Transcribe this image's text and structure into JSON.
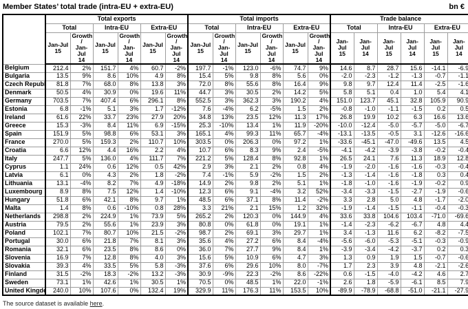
{
  "title": "Member States’ total trade (intra-EU + extra-EU)",
  "unit": "bn €",
  "table": {
    "groups": [
      {
        "label": "Total exports",
        "subgroups": [
          {
            "label": "Total",
            "cols": [
              "Jan-Jul\n15",
              "Growth /\nJan-Jul\n14"
            ]
          },
          {
            "label": "Intra-EU",
            "cols": [
              "Jan-Jul\n15",
              "Growth /\nJan-Jul\n14"
            ]
          },
          {
            "label": "Extra-EU",
            "cols": [
              "Jan-Jul\n15",
              "Growth /\nJan-Jul\n14"
            ]
          }
        ]
      },
      {
        "label": "Total imports",
        "subgroups": [
          {
            "label": "Total",
            "cols": [
              "Jan-Jul\n15",
              "Growth /\nJan-Jul\n14"
            ]
          },
          {
            "label": "Intra-EU",
            "cols": [
              "Jan-Jul\n15",
              "Growth /\nJan-Jul\n14"
            ]
          },
          {
            "label": "Extra-EU",
            "cols": [
              "Jan-Jul\n15",
              "Growth /\nJan-Jul\n14"
            ]
          }
        ]
      },
      {
        "label": "Trade balance",
        "subgroups": [
          {
            "label": "Total",
            "cols": [
              "Jan-Jul\n15",
              "Jan-Jul\n14"
            ]
          },
          {
            "label": "Intra-EU",
            "cols": [
              "Jan-Jul\n15",
              "Jan-Jul\n14"
            ]
          },
          {
            "label": "Extra-EU",
            "cols": [
              "Jan-Jul\n15",
              "Jan-Jul\n14"
            ]
          }
        ]
      }
    ],
    "rows": [
      [
        "Belgium",
        "212.4",
        "2%",
        "151.7",
        "4%",
        "60.7",
        "-2%",
        "197.7",
        "-1%",
        "123.0",
        "-6%",
        "74.7",
        "9%",
        "14.6",
        "8.7",
        "28.7",
        "15.6",
        "-14.1",
        "-6.9"
      ],
      [
        "Bulgaria",
        "13.5",
        "9%",
        "8.6",
        "10%",
        "4.9",
        "8%",
        "15.4",
        "5%",
        "9.8",
        "8%",
        "5.6",
        "0%",
        "-2.0",
        "-2.3",
        "-1.2",
        "-1.3",
        "-0.7",
        "-1.1"
      ],
      [
        "Czech Republic",
        "81.8",
        "7%",
        "68.0",
        "8%",
        "13.8",
        "3%",
        "72.0",
        "8%",
        "55.6",
        "8%",
        "16.4",
        "9%",
        "9.8",
        "9.7",
        "12.4",
        "11.4",
        "-2.5",
        "-1.6"
      ],
      [
        "Denmark",
        "50.5",
        "4%",
        "30.9",
        "0%",
        "19.6",
        "11%",
        "44.7",
        "3%",
        "30.5",
        "2%",
        "14.2",
        "5%",
        "5.8",
        "5.1",
        "0.4",
        "1.0",
        "5.4",
        "4.1"
      ],
      [
        "Germany",
        "703.5",
        "7%",
        "407.4",
        "6%",
        "296.1",
        "8%",
        "552.5",
        "3%",
        "362.3",
        "3%",
        "190.2",
        "4%",
        "151.0",
        "123.7",
        "45.1",
        "32.8",
        "105.9",
        "90.9"
      ],
      [
        "Estonia",
        "6.8",
        "-1%",
        "5.1",
        "3%",
        "1.7",
        "-12%",
        "7.6",
        "-4%",
        "6.2",
        "-5%",
        "1.5",
        "2%",
        "-0.8",
        "-1.0",
        "-1.1",
        "-1.5",
        "0.2",
        "0.5"
      ],
      [
        "Ireland",
        "61.6",
        "22%",
        "33.7",
        "23%",
        "27.9",
        "20%",
        "34.8",
        "13%",
        "23.5",
        "12%",
        "11.3",
        "17%",
        "26.8",
        "19.9",
        "10.2",
        "6.3",
        "16.6",
        "13.6"
      ],
      [
        "Greece",
        "15.3",
        "-3%",
        "8.4",
        "11%",
        "6.9",
        "-15%",
        "25.3",
        "-10%",
        "13.4",
        "1%",
        "11.9",
        "-20%",
        "-10.0",
        "-12.4",
        "-5.0",
        "-5.7",
        "-5.0",
        "-6.7"
      ],
      [
        "Spain",
        "151.9",
        "5%",
        "98.8",
        "6%",
        "53.1",
        "3%",
        "165.1",
        "4%",
        "99.3",
        "11%",
        "65.7",
        "-4%",
        "-13.1",
        "-13.5",
        "-0.5",
        "3.1",
        "-12.6",
        "-16.6"
      ],
      [
        "France",
        "270.0",
        "5%",
        "159.3",
        "2%",
        "110.7",
        "10%",
        "303.5",
        "0%",
        "206.3",
        "0%",
        "97.2",
        "1%",
        "-33.6",
        "-45.1",
        "-47.0",
        "-49.6",
        "13.5",
        "4.5"
      ],
      [
        "Croatia",
        "6.6",
        "12%",
        "4.4",
        "16%",
        "2.2",
        "4%",
        "10.7",
        "6%",
        "8.3",
        "9%",
        "2.4",
        "-5%",
        "-4.1",
        "-4.2",
        "-3.9",
        "-3.8",
        "-0.2",
        "-0.4"
      ],
      [
        "Italy",
        "247.7",
        "5%",
        "136.0",
        "4%",
        "111.7",
        "7%",
        "221.2",
        "5%",
        "128.4",
        "8%",
        "92.8",
        "1%",
        "26.5",
        "24.1",
        "7.6",
        "11.3",
        "18.9",
        "12.8"
      ],
      [
        "Cyprus",
        "1.1",
        "24%",
        "0.6",
        "12%",
        "0.5",
        "42%",
        "2.9",
        "3%",
        "2.1",
        "2%",
        "0.8",
        "4%",
        "-1.9",
        "-2.0",
        "-1.6",
        "-1.6",
        "-0.3",
        "-0.4"
      ],
      [
        "Latvia",
        "6.1",
        "0%",
        "4.3",
        "2%",
        "1.8",
        "-2%",
        "7.4",
        "-1%",
        "5.9",
        "-2%",
        "1.5",
        "2%",
        "-1.3",
        "-1.4",
        "-1.6",
        "-1.8",
        "0.3",
        "0.4"
      ],
      [
        "Lithuania",
        "13.1",
        "-4%",
        "8.2",
        "7%",
        "4.9",
        "-18%",
        "14.9",
        "2%",
        "9.8",
        "2%",
        "5.1",
        "1%",
        "-1.8",
        "-1.0",
        "-1.6",
        "-1.9",
        "-0.2",
        "0.9"
      ],
      [
        "Luxembourg",
        "8.9",
        "8%",
        "7.5",
        "12%",
        "1.4",
        "-10%",
        "12.3",
        "6%",
        "9.1",
        "-4%",
        "3.2",
        "52%",
        "-3.4",
        "-3.3",
        "-1.5",
        "-2.7",
        "-1.9",
        "-0.6"
      ],
      [
        "Hungary",
        "51.8",
        "6%",
        "42.1",
        "8%",
        "9.7",
        "1%",
        "48.5",
        "6%",
        "37.1",
        "8%",
        "11.4",
        "-2%",
        "3.3",
        "2.8",
        "5.0",
        "4.8",
        "-1.7",
        "-2.0"
      ],
      [
        "Malta",
        "1.4",
        "8%",
        "0.6",
        "-10%",
        "0.8",
        "28%",
        "3.3",
        "21%",
        "2.1",
        "15%",
        "1.2",
        "32%",
        "-1.9",
        "-1.4",
        "-1.5",
        "-1.1",
        "-0.4",
        "-0.3"
      ],
      [
        "Netherlands",
        "298.8",
        "2%",
        "224.9",
        "1%",
        "73.9",
        "5%",
        "265.2",
        "2%",
        "120.3",
        "0%",
        "144.9",
        "4%",
        "33.6",
        "33.8",
        "104.6",
        "103.4",
        "-71.0",
        "-69.6"
      ],
      [
        "Austria",
        "79.5",
        "2%",
        "55.6",
        "1%",
        "23.9",
        "3%",
        "80.8",
        "0%",
        "61.8",
        "0%",
        "19.1",
        "1%",
        "-1.4",
        "-2.3",
        "-6.2",
        "-6.7",
        "4.8",
        "4.4"
      ],
      [
        "Poland",
        "102.1",
        "7%",
        "80.7",
        "10%",
        "21.5",
        "-2%",
        "98.7",
        "2%",
        "69.1",
        "3%",
        "29.7",
        "1%",
        "3.4",
        "-1.3",
        "11.6",
        "6.2",
        "-8.2",
        "-7.5"
      ],
      [
        "Portugal",
        "30.0",
        "6%",
        "21.8",
        "7%",
        "8.1",
        "3%",
        "35.6",
        "4%",
        "27.2",
        "6%",
        "8.4",
        "-4%",
        "-5.6",
        "-6.0",
        "-5.3",
        "-5.1",
        "-0.3",
        "-0.9"
      ],
      [
        "Romania",
        "32.1",
        "6%",
        "23.5",
        "8%",
        "8.6",
        "0%",
        "36.0",
        "7%",
        "27.7",
        "9%",
        "8.4",
        "1%",
        "-3.9",
        "-3.4",
        "-4.2",
        "-3.7",
        "0.2",
        "0.3"
      ],
      [
        "Slovenia",
        "16.9",
        "7%",
        "12.8",
        "8%",
        "4.0",
        "3%",
        "15.6",
        "5%",
        "10.9",
        "6%",
        "4.7",
        "3%",
        "1.3",
        "0.9",
        "1.9",
        "1.5",
        "-0.7",
        "-0.6"
      ],
      [
        "Slovakia",
        "39.3",
        "4%",
        "33.5",
        "5%",
        "5.8",
        "-3%",
        "37.6",
        "6%",
        "29.6",
        "10%",
        "8.0",
        "-7%",
        "1.7",
        "2.3",
        "3.9",
        "4.8",
        "-2.1",
        "-2.6"
      ],
      [
        "Finland",
        "31.5",
        "-2%",
        "18.3",
        "-2%",
        "13.2",
        "-3%",
        "30.9",
        "-9%",
        "22.3",
        "-2%",
        "8.6",
        "-22%",
        "0.6",
        "-1.5",
        "-4.0",
        "-4.2",
        "4.6",
        "2.7"
      ],
      [
        "Sweden",
        "73.1",
        "1%",
        "42.6",
        "1%",
        "30.5",
        "1%",
        "70.5",
        "0%",
        "48.5",
        "1%",
        "22.0",
        "-1%",
        "2.6",
        "1.8",
        "-5.9",
        "-6.1",
        "8.5",
        "7.9"
      ],
      [
        "United Kingdom",
        "240.0",
        "10%",
        "107.6",
        "0%",
        "132.4",
        "19%",
        "329.9",
        "11%",
        "176.3",
        "11%",
        "153.5",
        "10%",
        "-89.9",
        "-78.9",
        "-68.8",
        "-51.0",
        "-21.1",
        "-27.9"
      ]
    ]
  },
  "footer": {
    "text_before_link": "The source dataset is available ",
    "link_text": "here",
    "text_after_link": "."
  }
}
